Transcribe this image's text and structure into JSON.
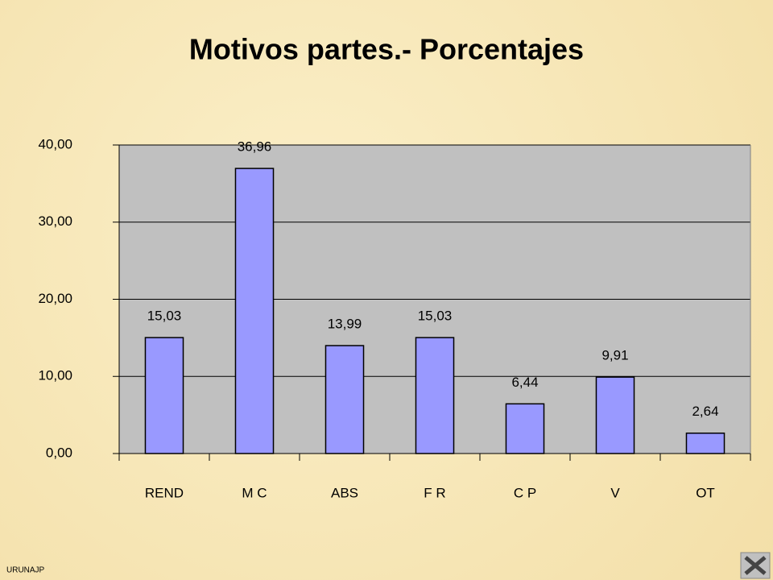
{
  "chart_data": {
    "type": "bar",
    "title": "Motivos partes.- Porcentajes",
    "categories": [
      "REND",
      "M C",
      "ABS",
      "F R",
      "C P",
      "V",
      "OT"
    ],
    "values": [
      15.03,
      36.96,
      13.99,
      15.03,
      6.44,
      9.91,
      2.64
    ],
    "value_labels": [
      "15,03",
      "36,96",
      "13,99",
      "15,03",
      "6,44",
      "9,91",
      "2,64"
    ],
    "color": "#9999ff",
    "ylim": [
      0,
      40
    ],
    "yticks": [
      {
        "value": 0,
        "label": "0,00"
      },
      {
        "value": 10,
        "label": "10,00"
      },
      {
        "value": 20,
        "label": "20,00"
      },
      {
        "value": 30,
        "label": "30,00"
      },
      {
        "value": 40,
        "label": "40,00"
      }
    ],
    "grid": true
  },
  "footer": "URUNAJP"
}
